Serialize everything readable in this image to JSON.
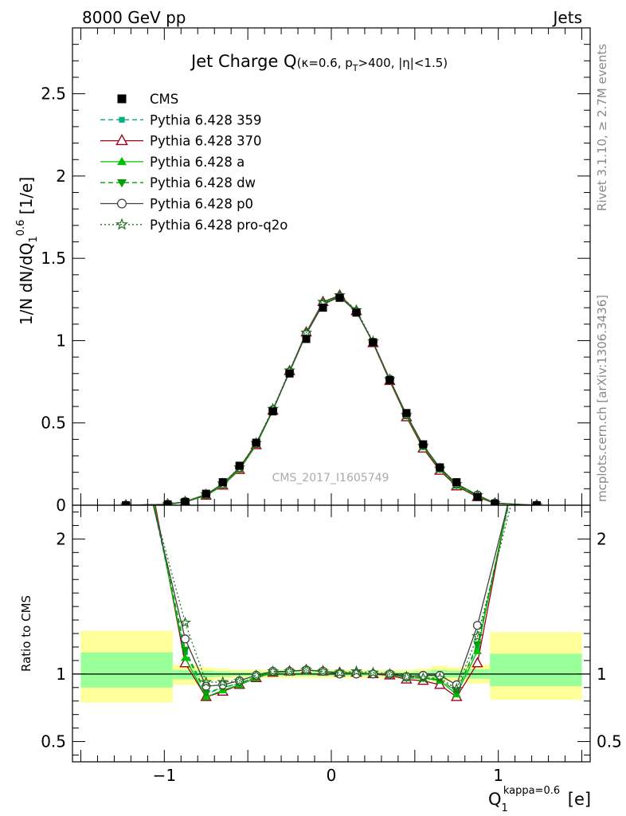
{
  "header": {
    "left": "8000 GeV pp",
    "right": "Jets"
  },
  "side_labels": {
    "rivet": "Rivet 3.1.10, ≥ 2.7M events",
    "mcplots": "mcplots.cern.ch [arXiv:1306.3436]"
  },
  "chart_data": [
    {
      "type": "line",
      "title": "Jet Charge Q(κ=0.6, pT>400, |η|<1.5)",
      "ylabel": "1/N dN/dQ1^0.6 [1/e]",
      "xlim": [
        -1.55,
        1.55
      ],
      "ylim": [
        0,
        2.9
      ],
      "yticks": [
        0,
        0.5,
        1,
        1.5,
        2,
        2.5
      ],
      "ytick_labels": [
        "0",
        "0.5",
        "1",
        "1.5",
        "2",
        "2.5"
      ],
      "watermark": "CMS_2017_I1605749",
      "x": [
        -1.23,
        -0.98,
        -0.875,
        -0.75,
        -0.65,
        -0.55,
        -0.45,
        -0.35,
        -0.25,
        -0.15,
        -0.05,
        0.05,
        0.15,
        0.25,
        0.35,
        0.45,
        0.55,
        0.65,
        0.75,
        0.875,
        0.98,
        1.23
      ],
      "series": [
        {
          "name": "CMS",
          "color": "#000000",
          "marker": "square",
          "line": "none",
          "values": [
            0.0,
            0.005,
            0.02,
            0.07,
            0.14,
            0.24,
            0.38,
            0.57,
            0.8,
            1.01,
            1.2,
            1.26,
            1.17,
            0.99,
            0.76,
            0.56,
            0.37,
            0.23,
            0.14,
            0.05,
            0.01,
            0.0
          ]
        },
        {
          "name": "Pythia 6.428 359",
          "color": "#00b080",
          "marker": "small-square",
          "line": "dashed",
          "values": [
            0.0,
            0.005,
            0.02,
            0.06,
            0.125,
            0.22,
            0.37,
            0.575,
            0.81,
            1.045,
            1.225,
            1.27,
            1.18,
            0.99,
            0.765,
            0.545,
            0.355,
            0.22,
            0.125,
            0.055,
            0.012,
            0.0
          ]
        },
        {
          "name": "Pythia 6.428 370",
          "color": "#a00020",
          "marker": "open-triangle",
          "line": "solid",
          "values": [
            0.0,
            0.005,
            0.02,
            0.058,
            0.12,
            0.215,
            0.365,
            0.575,
            0.815,
            1.05,
            1.235,
            1.275,
            1.18,
            0.985,
            0.755,
            0.535,
            0.345,
            0.21,
            0.115,
            0.05,
            0.011,
            0.0
          ]
        },
        {
          "name": "Pythia 6.428 a",
          "color": "#00c000",
          "marker": "triangle",
          "line": "solid",
          "values": [
            0.0,
            0.005,
            0.02,
            0.058,
            0.122,
            0.218,
            0.368,
            0.575,
            0.812,
            1.045,
            1.228,
            1.27,
            1.178,
            0.99,
            0.762,
            0.542,
            0.355,
            0.218,
            0.12,
            0.055,
            0.012,
            0.0
          ]
        },
        {
          "name": "Pythia 6.428 dw",
          "color": "#00a000",
          "marker": "triangle-down",
          "line": "dashed",
          "values": [
            0.0,
            0.005,
            0.021,
            0.06,
            0.125,
            0.222,
            0.372,
            0.578,
            0.812,
            1.042,
            1.225,
            1.268,
            1.176,
            0.99,
            0.763,
            0.545,
            0.358,
            0.22,
            0.122,
            0.058,
            0.012,
            0.0
          ]
        },
        {
          "name": "Pythia 6.428 p0",
          "color": "#404040",
          "marker": "open-circle",
          "line": "solid",
          "values": [
            0.0,
            0.006,
            0.022,
            0.065,
            0.13,
            0.228,
            0.375,
            0.58,
            0.81,
            1.04,
            1.22,
            1.265,
            1.175,
            0.99,
            0.765,
            0.55,
            0.365,
            0.228,
            0.13,
            0.062,
            0.013,
            0.0
          ]
        },
        {
          "name": "Pythia 6.428 pro-q2o",
          "color": "#207020",
          "marker": "open-star",
          "line": "dotted",
          "values": [
            0.0,
            0.006,
            0.023,
            0.066,
            0.132,
            0.23,
            0.378,
            0.585,
            0.818,
            1.048,
            1.235,
            1.275,
            1.185,
            0.995,
            0.765,
            0.548,
            0.36,
            0.222,
            0.128,
            0.06,
            0.012,
            0.0
          ]
        }
      ],
      "legend": {
        "position": "top-left",
        "entries": [
          "CMS",
          "Pythia 6.428 359",
          "Pythia 6.428 370",
          "Pythia 6.428 a",
          "Pythia 6.428 dw",
          "Pythia 6.428 p0",
          "Pythia 6.428 pro-q2o"
        ]
      }
    },
    {
      "type": "line",
      "ylabel": "Ratio to CMS",
      "xlabel": "Q1^kappa=0.6 [e]",
      "xlim": [
        -1.55,
        1.55
      ],
      "ylim": [
        0.35,
        2.25
      ],
      "xticks": [
        -1,
        0,
        1
      ],
      "xtick_labels": [
        "−1",
        "0",
        "1"
      ],
      "yticks": [
        0.5,
        1,
        2
      ],
      "ytick_labels": [
        "0.5",
        "1",
        "2"
      ],
      "reference_line": 1,
      "bands": [
        {
          "x0": -1.5,
          "x1": -0.95,
          "yellow": [
            0.79,
            1.32
          ],
          "green": [
            0.9,
            1.16
          ]
        },
        {
          "x0": -0.95,
          "x1": -0.8,
          "yellow": [
            0.92,
            1.07
          ],
          "green": [
            0.96,
            1.03
          ]
        },
        {
          "x0": -0.8,
          "x1": -0.7,
          "yellow": [
            0.95,
            1.05
          ],
          "green": [
            0.975,
            1.025
          ]
        },
        {
          "x0": -0.7,
          "x1": -0.6,
          "yellow": [
            0.96,
            1.04
          ],
          "green": [
            0.98,
            1.02
          ]
        },
        {
          "x0": -0.6,
          "x1": 0.5,
          "yellow": [
            0.97,
            1.03
          ],
          "green": [
            0.985,
            1.015
          ]
        },
        {
          "x0": 0.5,
          "x1": 0.6,
          "yellow": [
            0.96,
            1.04
          ],
          "green": [
            0.98,
            1.02
          ]
        },
        {
          "x0": 0.6,
          "x1": 0.7,
          "yellow": [
            0.94,
            1.06
          ],
          "green": [
            0.97,
            1.03
          ]
        },
        {
          "x0": 0.7,
          "x1": 0.8,
          "yellow": [
            0.95,
            1.05
          ],
          "green": [
            0.975,
            1.025
          ]
        },
        {
          "x0": 0.8,
          "x1": 0.95,
          "yellow": [
            0.93,
            1.07
          ],
          "green": [
            0.965,
            1.035
          ]
        },
        {
          "x0": 0.95,
          "x1": 1.5,
          "yellow": [
            0.81,
            1.31
          ],
          "green": [
            0.91,
            1.15
          ]
        }
      ],
      "x": [
        -1.23,
        -0.875,
        -0.75,
        -0.65,
        -0.55,
        -0.45,
        -0.35,
        -0.25,
        -0.15,
        -0.05,
        0.05,
        0.15,
        0.25,
        0.35,
        0.45,
        0.55,
        0.65,
        0.75,
        0.875,
        1.23
      ],
      "series": [
        {
          "name": "Pythia 6.428 359",
          "color": "#00b080",
          "line": "dashed",
          "marker": "small-square",
          "values": [
            3.2,
            1.16,
            0.85,
            0.9,
            0.93,
            0.98,
            1.01,
            1.02,
            1.03,
            1.02,
            1.01,
            1.01,
            1.0,
            1.0,
            0.98,
            0.97,
            0.96,
            0.87,
            1.2,
            3.2
          ]
        },
        {
          "name": "Pythia 6.428 370",
          "color": "#a00020",
          "line": "solid",
          "marker": "open-triangle",
          "values": [
            3.4,
            1.08,
            0.83,
            0.87,
            0.92,
            0.97,
            1.01,
            1.02,
            1.03,
            1.02,
            1.01,
            1.01,
            1.0,
            0.99,
            0.96,
            0.95,
            0.92,
            0.83,
            1.08,
            3.4
          ]
        },
        {
          "name": "Pythia 6.428 a",
          "color": "#00c000",
          "line": "solid",
          "marker": "triangle",
          "values": [
            3.3,
            1.12,
            0.83,
            0.88,
            0.92,
            0.97,
            1.01,
            1.02,
            1.03,
            1.02,
            1.01,
            1.01,
            1.0,
            1.0,
            0.97,
            0.97,
            0.95,
            0.85,
            1.17,
            3.3
          ]
        },
        {
          "name": "Pythia 6.428 dw",
          "color": "#00a000",
          "line": "dashed",
          "marker": "triangle-down",
          "values": [
            3.2,
            1.18,
            0.86,
            0.9,
            0.93,
            0.98,
            1.01,
            1.02,
            1.03,
            1.02,
            1.01,
            1.0,
            1.0,
            1.0,
            0.97,
            0.97,
            0.96,
            0.87,
            1.22,
            3.2
          ]
        },
        {
          "name": "Pythia 6.428 p0",
          "color": "#404040",
          "line": "solid",
          "marker": "open-circle",
          "values": [
            3.1,
            1.26,
            0.91,
            0.92,
            0.95,
            0.99,
            1.02,
            1.02,
            1.03,
            1.02,
            1.0,
            1.0,
            1.0,
            1.0,
            0.98,
            0.99,
            0.99,
            0.92,
            1.36,
            3.1
          ]
        },
        {
          "name": "Pythia 6.428 pro-q2o",
          "color": "#207020",
          "line": "dotted",
          "marker": "open-star",
          "values": [
            3.0,
            1.38,
            0.94,
            0.94,
            0.95,
            0.99,
            1.02,
            1.02,
            1.03,
            1.02,
            1.01,
            1.02,
            1.01,
            1.0,
            0.98,
            0.97,
            0.97,
            0.89,
            1.28,
            3.0
          ]
        }
      ]
    }
  ]
}
